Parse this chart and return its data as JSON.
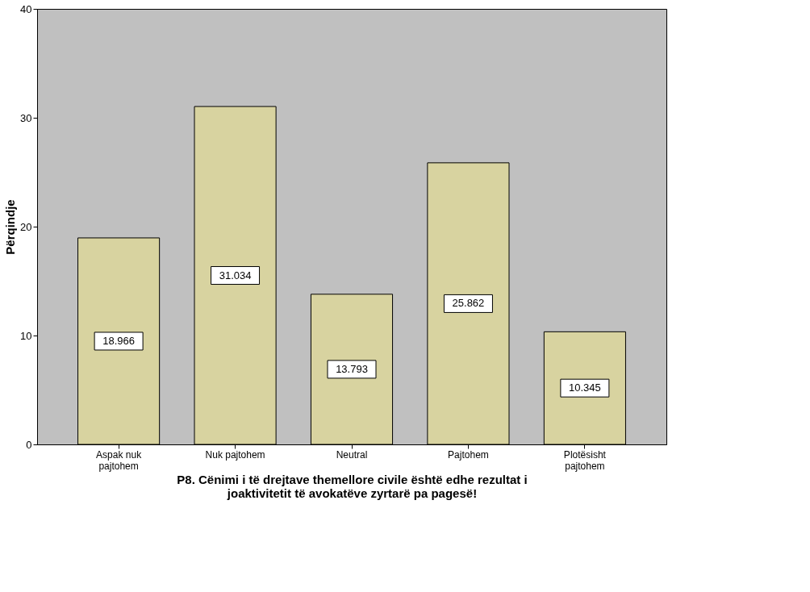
{
  "chart_data": {
    "type": "bar",
    "categories": [
      "Aspak nuk pajtohem",
      "Nuk pajtohem",
      "Neutral",
      "Pajtohem",
      "Plotësisht pajtohem"
    ],
    "values": [
      18.966,
      31.034,
      13.793,
      25.862,
      10.345
    ],
    "color": "#d8d3a0",
    "ylabel": "Përqindje",
    "xlabel": "P8. Cënimi i të drejtave themellore civile është edhe rezultat i joaktivitetit të avokatëve zyrtarë pa pagesë!",
    "ylim": [
      0,
      40
    ],
    "yticks": [
      0,
      10,
      20,
      30,
      40
    ],
    "data_labels": true,
    "grid": false
  }
}
